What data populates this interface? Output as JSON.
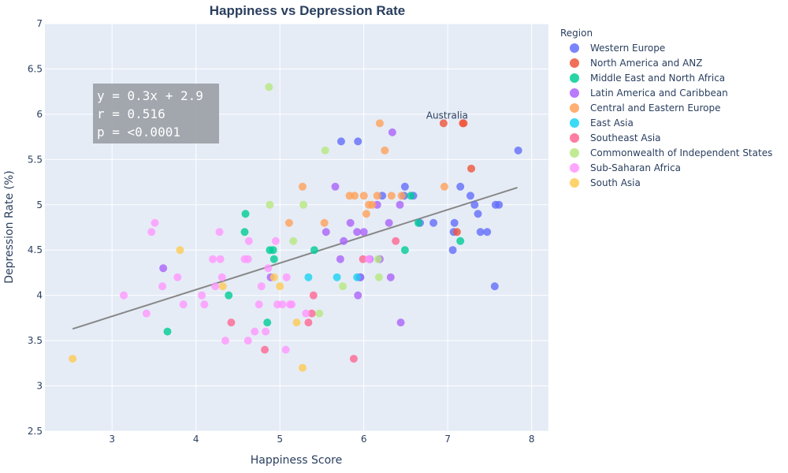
{
  "chart_data": {
    "type": "scatter",
    "title": "Happiness vs Depression Rate",
    "xlabel": "Happiness Score",
    "ylabel": "Depression Rate (%)",
    "xlim": [
      2.2,
      8.2
    ],
    "ylim": [
      2.5,
      7
    ],
    "xticks": [
      3,
      4,
      5,
      6,
      7,
      8
    ],
    "yticks": [
      2.5,
      3,
      3.5,
      4,
      4.5,
      5,
      5.5,
      6,
      6.5,
      7
    ],
    "legend_title": "Region",
    "trendline": {
      "x": [
        2.53,
        7.83
      ],
      "y": [
        3.63,
        5.19
      ],
      "color": "#888888"
    },
    "stats": {
      "line1": "y = 0.3x + 2.9",
      "line2": "r = 0.516",
      "line3": "p = <0.0001"
    },
    "annotation": {
      "text": "Australia",
      "x": 7.18,
      "y": 5.9
    },
    "series": [
      {
        "name": "Western Europe",
        "color": "#636efa",
        "points": [
          [
            5.73,
            5.7
          ],
          [
            5.93,
            5.7
          ],
          [
            7.84,
            5.6
          ],
          [
            6.49,
            5.2
          ],
          [
            6.59,
            5.1
          ],
          [
            7.15,
            5.2
          ],
          [
            7.27,
            5.1
          ],
          [
            7.32,
            5.0
          ],
          [
            7.57,
            5.0
          ],
          [
            7.61,
            5.0
          ],
          [
            7.36,
            4.9
          ],
          [
            6.83,
            4.8
          ],
          [
            6.67,
            4.8
          ],
          [
            7.08,
            4.8
          ],
          [
            7.07,
            4.7
          ],
          [
            7.39,
            4.7
          ],
          [
            7.47,
            4.7
          ],
          [
            6.48,
            5.1
          ],
          [
            7.06,
            4.5
          ],
          [
            7.56,
            4.1
          ],
          [
            6.22,
            5.1
          ],
          [
            5.96,
            4.2
          ]
        ]
      },
      {
        "name": "North America and ANZ",
        "color": "#ef553b",
        "points": [
          [
            6.95,
            5.9
          ],
          [
            7.18,
            5.9
          ],
          [
            7.19,
            5.9
          ],
          [
            7.28,
            5.4
          ],
          [
            7.11,
            4.7
          ]
        ]
      },
      {
        "name": "Middle East and North Africa",
        "color": "#00cc96",
        "points": [
          [
            4.59,
            4.9
          ],
          [
            4.58,
            4.7
          ],
          [
            4.88,
            4.5
          ],
          [
            4.92,
            4.5
          ],
          [
            4.93,
            4.4
          ],
          [
            5.41,
            4.5
          ],
          [
            6.49,
            4.5
          ],
          [
            6.56,
            5.1
          ],
          [
            6.65,
            4.8
          ],
          [
            7.15,
            4.6
          ],
          [
            4.39,
            4.0
          ],
          [
            3.66,
            3.6
          ],
          [
            4.85,
            3.7
          ]
        ]
      },
      {
        "name": "Latin America and Caribbean",
        "color": "#ab63fa",
        "points": [
          [
            3.61,
            4.3
          ],
          [
            4.89,
            4.2
          ],
          [
            5.66,
            5.2
          ],
          [
            5.55,
            4.7
          ],
          [
            5.72,
            4.4
          ],
          [
            5.76,
            4.6
          ],
          [
            5.84,
            4.8
          ],
          [
            5.92,
            4.7
          ],
          [
            6.0,
            4.7
          ],
          [
            6.07,
            4.4
          ],
          [
            6.16,
            5.0
          ],
          [
            6.19,
            4.4
          ],
          [
            6.3,
            4.8
          ],
          [
            6.34,
            5.8
          ],
          [
            6.43,
            5.0
          ],
          [
            6.44,
            3.7
          ],
          [
            6.32,
            4.2
          ],
          [
            5.93,
            4.0
          ],
          [
            5.95,
            4.2
          ]
        ]
      },
      {
        "name": "Central and Eastern Europe",
        "color": "#ffa15a",
        "points": [
          [
            5.27,
            5.2
          ],
          [
            5.11,
            4.8
          ],
          [
            5.53,
            4.8
          ],
          [
            5.83,
            5.1
          ],
          [
            5.89,
            5.1
          ],
          [
            6.0,
            5.1
          ],
          [
            6.06,
            5.0
          ],
          [
            6.03,
            4.9
          ],
          [
            6.1,
            5.0
          ],
          [
            6.16,
            5.1
          ],
          [
            6.19,
            5.9
          ],
          [
            6.25,
            5.6
          ],
          [
            6.33,
            5.1
          ],
          [
            6.45,
            5.1
          ],
          [
            6.96,
            5.2
          ]
        ]
      },
      {
        "name": "East Asia",
        "color": "#19d3f3",
        "points": [
          [
            5.34,
            4.2
          ],
          [
            5.68,
            4.2
          ],
          [
            5.92,
            4.2
          ]
        ]
      },
      {
        "name": "Southeast Asia",
        "color": "#ff6692",
        "points": [
          [
            4.42,
            3.7
          ],
          [
            4.82,
            3.4
          ],
          [
            5.34,
            3.7
          ],
          [
            5.38,
            3.8
          ],
          [
            5.4,
            4.0
          ],
          [
            5.88,
            3.3
          ],
          [
            5.99,
            4.4
          ],
          [
            6.38,
            4.6
          ]
        ]
      },
      {
        "name": "Commonwealth of Independent States",
        "color": "#b6e880",
        "points": [
          [
            4.87,
            6.3
          ],
          [
            4.88,
            5.0
          ],
          [
            5.28,
            5.0
          ],
          [
            5.54,
            5.6
          ],
          [
            5.16,
            4.6
          ],
          [
            5.47,
            3.8
          ],
          [
            5.75,
            4.1
          ],
          [
            6.17,
            4.4
          ],
          [
            6.18,
            4.2
          ]
        ]
      },
      {
        "name": "Sub-Saharan Africa",
        "color": "#ff97ff",
        "points": [
          [
            3.14,
            4.0
          ],
          [
            3.41,
            3.8
          ],
          [
            3.47,
            4.7
          ],
          [
            3.51,
            4.8
          ],
          [
            3.6,
            4.1
          ],
          [
            3.78,
            4.2
          ],
          [
            3.85,
            3.9
          ],
          [
            4.07,
            4.0
          ],
          [
            4.1,
            3.9
          ],
          [
            4.2,
            4.4
          ],
          [
            4.23,
            4.1
          ],
          [
            4.28,
            4.7
          ],
          [
            4.29,
            4.4
          ],
          [
            4.31,
            4.2
          ],
          [
            4.35,
            3.5
          ],
          [
            4.58,
            4.4
          ],
          [
            4.62,
            4.4
          ],
          [
            4.63,
            4.6
          ],
          [
            4.62,
            3.5
          ],
          [
            4.7,
            3.6
          ],
          [
            4.75,
            3.9
          ],
          [
            4.78,
            4.1
          ],
          [
            4.83,
            3.6
          ],
          [
            4.86,
            4.3
          ],
          [
            4.95,
            4.6
          ],
          [
            4.97,
            3.9
          ],
          [
            5.03,
            3.9
          ],
          [
            5.07,
            3.4
          ],
          [
            5.08,
            4.2
          ],
          [
            5.12,
            3.9
          ],
          [
            5.14,
            3.9
          ],
          [
            5.31,
            3.8
          ],
          [
            6.06,
            4.4
          ]
        ]
      },
      {
        "name": "South Asia",
        "color": "#fecb52",
        "points": [
          [
            2.53,
            3.3
          ],
          [
            3.81,
            4.5
          ],
          [
            4.32,
            4.1
          ],
          [
            4.93,
            4.2
          ],
          [
            5.0,
            4.1
          ],
          [
            5.2,
            3.7
          ],
          [
            5.27,
            3.2
          ]
        ]
      }
    ]
  }
}
